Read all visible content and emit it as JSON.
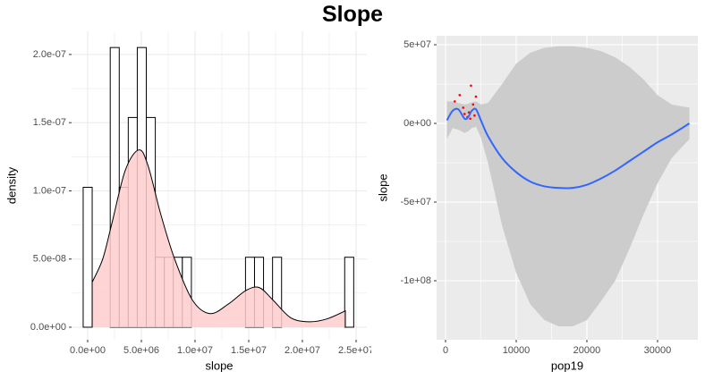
{
  "title": "Slope",
  "chart_data": [
    {
      "type": "histogram",
      "xlabel": "slope",
      "ylabel": "density",
      "bins": [
        -420000,
        420000,
        1260000,
        2100000,
        2940000,
        3780000,
        4620000,
        5460000,
        6300000,
        7140000,
        7980000,
        8820000,
        9660000,
        10500000,
        11340000,
        12180000,
        13020000,
        13860000,
        14700000,
        15540000,
        16380000,
        17220000,
        18060000,
        18900000,
        19740000,
        20580000,
        21420000,
        22260000,
        23100000,
        23940000,
        24780000
      ],
      "counts": [
        1.026e-07,
        0,
        0,
        2.051e-07,
        1.026e-07,
        1.538e-07,
        2.051e-07,
        1.538e-07,
        5.13e-08,
        5.13e-08,
        5.13e-08,
        5.13e-08,
        0,
        0,
        0,
        0,
        0,
        0,
        5.13e-08,
        5.13e-08,
        0,
        5.13e-08,
        0,
        0,
        0,
        0,
        0,
        0,
        0,
        5.13e-08
      ],
      "bar_fill": "#ffffff",
      "bar_edge": "#000000",
      "density": {
        "x": [
          420000,
          1400000,
          2250000,
          3500000,
          4750000,
          5600000,
          6800000,
          8100000,
          9750000,
          11400000,
          13100000,
          14750000,
          16000000,
          17250000,
          18900000,
          20600000,
          22250000,
          24000000
        ],
        "values": [
          3.3e-08,
          5e-08,
          7.6e-08,
          1.15e-07,
          1.3e-07,
          1.19e-07,
          8.3e-08,
          5e-08,
          2e-08,
          1e-08,
          1.7e-08,
          2.7e-08,
          2.9e-08,
          2e-08,
          7e-09,
          4e-09,
          6e-09,
          1.2e-08
        ],
        "fill": "#ffcccc",
        "color": "#000000"
      },
      "xlim": [
        -1500000,
        26000000
      ],
      "ylim": [
        -9.2e-09,
        2.17e-07
      ],
      "xticks": [
        {
          "value": 0,
          "label": "0.0e+00"
        },
        {
          "value": 5000000,
          "label": "5.0e+06"
        },
        {
          "value": 10000000,
          "label": "1.0e+07"
        },
        {
          "value": 15000000,
          "label": "1.5e+07"
        },
        {
          "value": 20000000,
          "label": "2.0e+07"
        },
        {
          "value": 25000000,
          "label": "2.5e+07"
        }
      ],
      "yticks": [
        {
          "value": 0,
          "label": "0.0e+00"
        },
        {
          "value": 5e-08,
          "label": "5.0e-08"
        },
        {
          "value": 1e-07,
          "label": "1.0e-07"
        },
        {
          "value": 1.5e-07,
          "label": "1.5e-07"
        },
        {
          "value": 2e-07,
          "label": "2.0e-07"
        }
      ],
      "grid": true,
      "background": "#ffffff",
      "grid_color": "#ebebeb"
    },
    {
      "type": "scatter",
      "xlabel": "pop19",
      "ylabel": "slope",
      "x": [
        1300,
        2000,
        2700,
        3100,
        3300,
        3600,
        3900,
        4100,
        4300,
        2500,
        3500
      ],
      "values": [
        14000000,
        18000000,
        6000000,
        4000000,
        7000000,
        24000000,
        12000000,
        5000000,
        17000000,
        10000000,
        3000000
      ],
      "color": "#ff0000",
      "smooth": {
        "x": [
          200,
          1000,
          1800,
          2700,
          3200,
          3700,
          4300,
          5000,
          6000,
          8000,
          10000,
          12000,
          14000,
          16000,
          18000,
          20000,
          22000,
          24000,
          26000,
          28000,
          30000,
          32000,
          34500
        ],
        "values": [
          2000000,
          8000000,
          9000000,
          3000000,
          4000000,
          8000000,
          9000000,
          2000000,
          -8000000,
          -22000000,
          -31000000,
          -37000000,
          -40000000,
          -41000000,
          -41000000,
          -39000000,
          -35000000,
          -30000000,
          -24000000,
          -18000000,
          -12000000,
          -7000000,
          0
        ],
        "upper": [
          14000000,
          14000000,
          13000000,
          12000000,
          12500000,
          13500000,
          14000000,
          12000000,
          13000000,
          25000000,
          38000000,
          45000000,
          48000000,
          49000000,
          49000000,
          48000000,
          46000000,
          42000000,
          36000000,
          28000000,
          18000000,
          12000000,
          10000000
        ],
        "lower": [
          -10000000,
          -3000000,
          -4000000,
          -6000000,
          -5000000,
          -3000000,
          -2000000,
          -9000000,
          -25000000,
          -65000000,
          -95000000,
          -115000000,
          -125000000,
          -129000000,
          -129000000,
          -125000000,
          -113000000,
          -100000000,
          -80000000,
          -58000000,
          -38000000,
          -22000000,
          -10000000
        ],
        "color": "#3366ff",
        "band_color": "#cccccc"
      },
      "xlim": [
        -1266,
        35700
      ],
      "ylim": [
        -137500000,
        55700000
      ],
      "xticks": [
        0,
        10000,
        20000,
        30000
      ],
      "yticks": [
        {
          "value": 50000000,
          "label": "5e+07"
        },
        {
          "value": 0,
          "label": "0e+00"
        },
        {
          "value": -50000000,
          "label": "-5e+07"
        },
        {
          "value": -100000000,
          "label": "-1e+08"
        }
      ],
      "grid": true,
      "background": "#ebebeb",
      "grid_color": "#ffffff"
    }
  ]
}
